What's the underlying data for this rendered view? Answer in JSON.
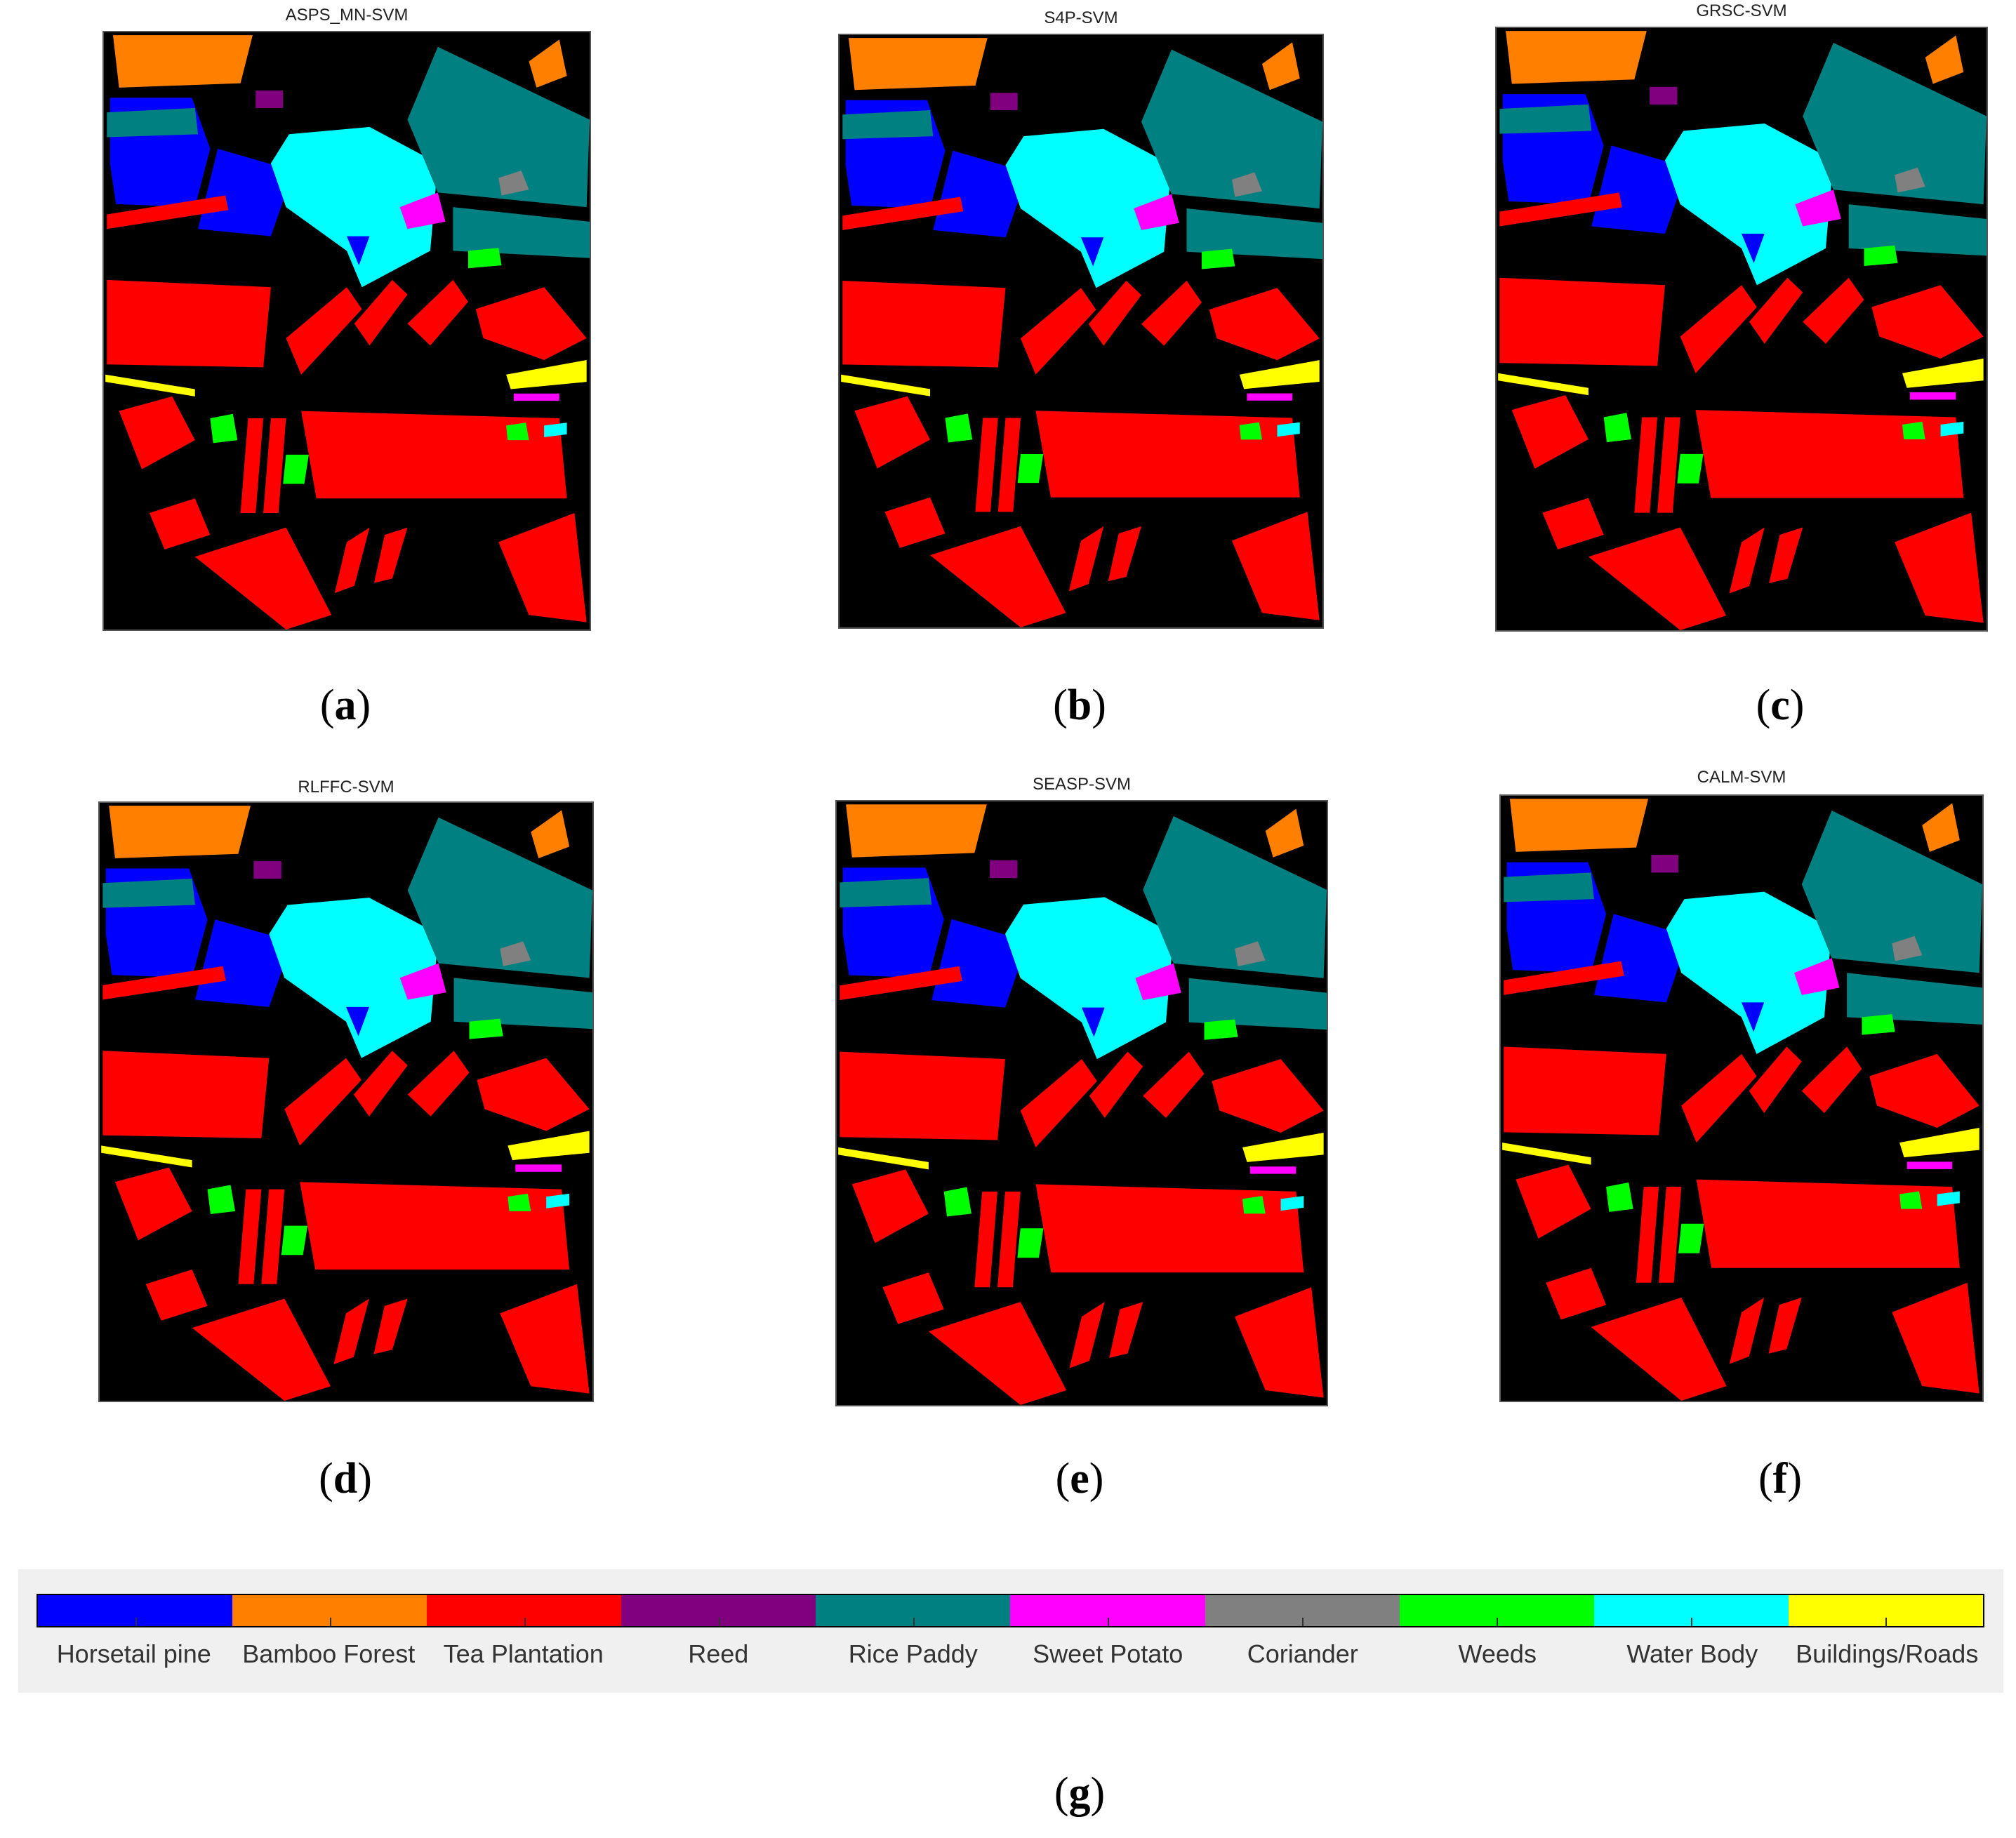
{
  "panels": [
    {
      "id": "a",
      "title": "ASPS_MN-SVM",
      "caption": "a"
    },
    {
      "id": "b",
      "title": "S4P-SVM",
      "caption": "b"
    },
    {
      "id": "c",
      "title": "GRSC-SVM",
      "caption": "c"
    },
    {
      "id": "d",
      "title": "RLFFC-SVM",
      "caption": "d"
    },
    {
      "id": "e",
      "title": "SEASP-SVM",
      "caption": "e"
    },
    {
      "id": "f",
      "title": "CALM-SVM",
      "caption": "f"
    }
  ],
  "legend": {
    "caption": "g",
    "classes": [
      {
        "label": "Horsetail pine",
        "color": "#0000ff"
      },
      {
        "label": "Bamboo Forest",
        "color": "#ff8000"
      },
      {
        "label": "Tea Plantation",
        "color": "#ff0000"
      },
      {
        "label": "Reed",
        "color": "#800080"
      },
      {
        "label": "Rice Paddy",
        "color": "#008080"
      },
      {
        "label": "Sweet Potato",
        "color": "#ff00ff"
      },
      {
        "label": "Coriander",
        "color": "#808080"
      },
      {
        "label": "Weeds",
        "color": "#00ff00"
      },
      {
        "label": "Water Body",
        "color": "#00ffff"
      },
      {
        "label": "Buildings/Roads",
        "color": "#ffff00"
      }
    ]
  }
}
